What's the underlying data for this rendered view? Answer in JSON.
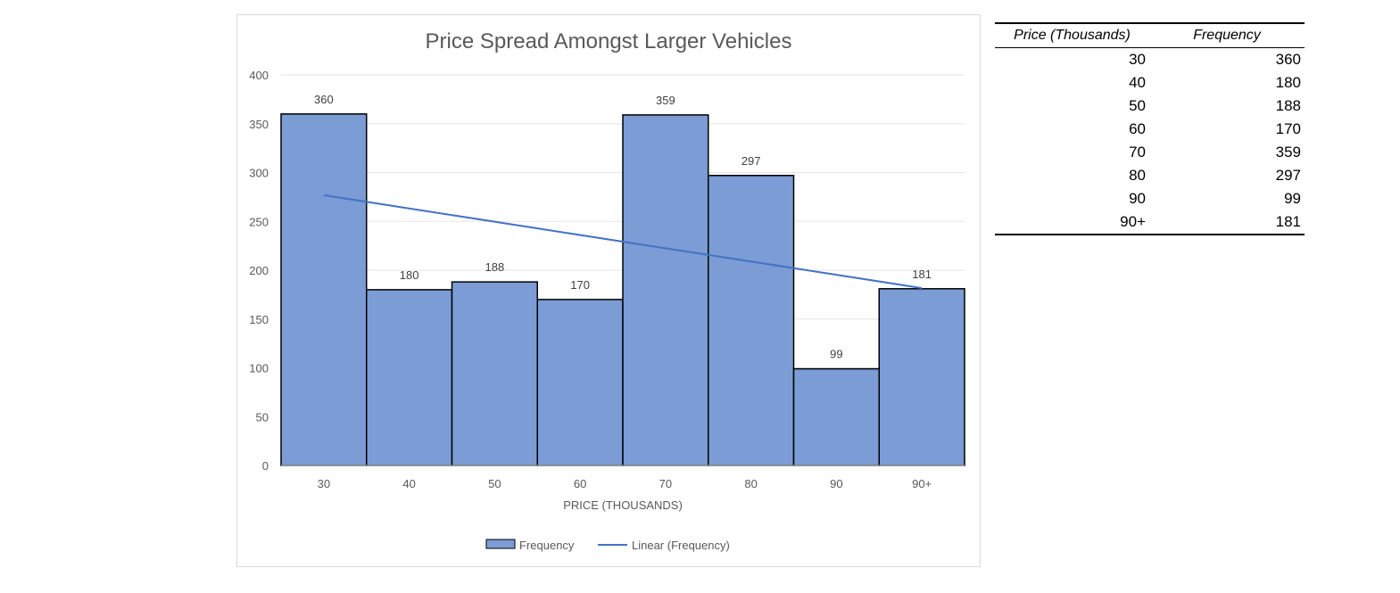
{
  "chart_data": {
    "type": "bar",
    "title": "Price Spread Amongst Larger Vehicles",
    "xlabel": "PRICE (THOUSANDS)",
    "ylabel": "",
    "categories": [
      "30",
      "40",
      "50",
      "60",
      "70",
      "80",
      "90",
      "90+"
    ],
    "series": [
      {
        "name": "Frequency",
        "values": [
          360,
          180,
          188,
          170,
          359,
          297,
          99,
          181
        ],
        "color": "#7b9cd4",
        "border_color": "#000000"
      }
    ],
    "trendline": {
      "name": "Linear (Frequency)",
      "type": "linear",
      "color": "#4472c4"
    },
    "ylim": [
      0,
      400
    ],
    "yticks": [
      0,
      50,
      100,
      150,
      200,
      250,
      300,
      350,
      400
    ],
    "grid": true,
    "data_labels": true,
    "legend": {
      "position": "bottom",
      "items": [
        "Frequency",
        "Linear (Frequency)"
      ]
    }
  },
  "table": {
    "headers": [
      "Price (Thousands)",
      "Frequency"
    ],
    "rows": [
      [
        "30",
        "360"
      ],
      [
        "40",
        "180"
      ],
      [
        "50",
        "188"
      ],
      [
        "60",
        "170"
      ],
      [
        "70",
        "359"
      ],
      [
        "80",
        "297"
      ],
      [
        "90",
        "99"
      ],
      [
        "90+",
        "181"
      ]
    ]
  }
}
